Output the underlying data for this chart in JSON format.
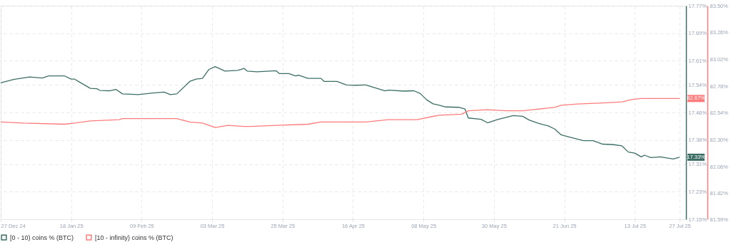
{
  "chart_data": {
    "type": "line",
    "grid": true,
    "legend": "bottom",
    "marker": "none",
    "line_style": "solid",
    "xlim": [
      "2024-12-27",
      "2025-07-29"
    ],
    "xticks": [
      {
        "value": "2024-12-27",
        "label": "27 Dec 24"
      },
      {
        "value": "2025-01-18",
        "label": "18 Jan 25"
      },
      {
        "value": "2025-02-09",
        "label": "09 Feb 25"
      },
      {
        "value": "2025-03-03",
        "label": "03 Mar 25"
      },
      {
        "value": "2025-03-25",
        "label": "25 Mar 25"
      },
      {
        "value": "2025-04-16",
        "label": "16 Apr 25"
      },
      {
        "value": "2025-05-08",
        "label": "08 May 25"
      },
      {
        "value": "2025-05-30",
        "label": "30 May 25"
      },
      {
        "value": "2025-06-21",
        "label": "21 Jun 25"
      },
      {
        "value": "2025-07-13",
        "label": "13 Jul 25"
      },
      {
        "value": "2025-07-27",
        "label": "27 Jul 25"
      }
    ],
    "ylim": [
      17.15,
      17.77
    ],
    "yticks": [
      {
        "value": 17.15,
        "label": "17.15%"
      },
      {
        "value": 17.23,
        "label": "17.23%"
      },
      {
        "value": 17.31,
        "label": "17.31%"
      },
      {
        "value": 17.38,
        "label": "17.38%"
      },
      {
        "value": 17.46,
        "label": "17.46%"
      },
      {
        "value": 17.54,
        "label": "17.54%"
      },
      {
        "value": 17.61,
        "label": "17.61%"
      },
      {
        "value": 17.69,
        "label": "17.69%"
      },
      {
        "value": 17.77,
        "label": "17.77%"
      }
    ],
    "y2lim": [
      81.59,
      83.5
    ],
    "y2ticks": [
      {
        "value": 81.59,
        "label": "81.59%"
      },
      {
        "value": 81.82,
        "label": "81.82%"
      },
      {
        "value": 82.06,
        "label": "82.06%"
      },
      {
        "value": 82.3,
        "label": "82.30%"
      },
      {
        "value": 82.54,
        "label": "82.54%"
      },
      {
        "value": 82.78,
        "label": "82.78%"
      },
      {
        "value": 83.02,
        "label": "83.02%"
      },
      {
        "value": 83.26,
        "label": "83.26%"
      },
      {
        "value": 83.5,
        "label": "83.50%"
      }
    ],
    "series": [
      {
        "name": "[0 - 10) coins % (BTC)",
        "color": "#3d6e66",
        "axis": "y",
        "x": [
          "2024-12-27",
          "2024-12-31",
          "2025-01-05",
          "2025-01-09",
          "2025-01-11",
          "2025-01-16",
          "2025-01-18",
          "2025-01-19",
          "2025-01-21",
          "2025-01-24",
          "2025-01-26",
          "2025-01-27",
          "2025-01-30",
          "2025-02-01",
          "2025-02-03",
          "2025-02-08",
          "2025-02-12",
          "2025-02-16",
          "2025-02-18",
          "2025-02-20",
          "2025-02-24",
          "2025-02-26",
          "2025-02-28",
          "2025-03-02",
          "2025-03-04",
          "2025-03-07",
          "2025-03-11",
          "2025-03-13",
          "2025-03-14",
          "2025-03-17",
          "2025-03-23",
          "2025-03-24",
          "2025-03-27",
          "2025-03-29",
          "2025-03-30",
          "2025-04-02",
          "2025-04-06",
          "2025-04-07",
          "2025-04-11",
          "2025-04-14",
          "2025-04-17",
          "2025-04-20",
          "2025-04-26",
          "2025-04-27",
          "2025-05-02",
          "2025-05-05",
          "2025-05-07",
          "2025-05-09",
          "2025-05-11",
          "2025-05-13",
          "2025-05-15",
          "2025-05-19",
          "2025-05-21",
          "2025-05-22",
          "2025-05-26",
          "2025-05-28",
          "2025-05-31",
          "2025-06-05",
          "2025-06-08",
          "2025-06-10",
          "2025-06-13",
          "2025-06-16",
          "2025-06-18",
          "2025-06-20",
          "2025-06-22",
          "2025-06-27",
          "2025-06-30",
          "2025-07-03",
          "2025-07-06",
          "2025-07-09",
          "2025-07-11",
          "2025-07-13",
          "2025-07-15",
          "2025-07-16",
          "2025-07-18",
          "2025-07-21",
          "2025-07-25",
          "2025-07-27"
        ],
        "values": [
          17.546,
          17.556,
          17.563,
          17.56,
          17.566,
          17.566,
          17.557,
          17.557,
          17.546,
          17.53,
          17.529,
          17.524,
          17.523,
          17.527,
          17.514,
          17.512,
          17.516,
          17.519,
          17.512,
          17.514,
          17.55,
          17.557,
          17.559,
          17.585,
          17.593,
          17.58,
          17.582,
          17.588,
          17.58,
          17.578,
          17.581,
          17.573,
          17.573,
          17.566,
          17.568,
          17.559,
          17.559,
          17.55,
          17.55,
          17.54,
          17.539,
          17.54,
          17.523,
          17.525,
          17.522,
          17.523,
          17.515,
          17.497,
          17.485,
          17.481,
          17.476,
          17.475,
          17.47,
          17.444,
          17.44,
          17.43,
          17.439,
          17.451,
          17.449,
          17.438,
          17.428,
          17.421,
          17.412,
          17.395,
          17.39,
          17.378,
          17.378,
          17.368,
          17.367,
          17.363,
          17.345,
          17.342,
          17.331,
          17.336,
          17.329,
          17.331,
          17.325,
          17.33
        ],
        "value_labels": [
          null,
          null,
          null,
          null,
          null,
          null,
          null,
          null,
          null,
          null,
          null,
          null,
          null,
          null,
          null,
          null,
          null,
          null,
          null,
          null,
          null,
          null,
          null,
          null,
          null,
          null,
          null,
          null,
          null,
          null,
          null,
          null,
          null,
          null,
          null,
          null,
          null,
          null,
          null,
          null,
          null,
          null,
          null,
          null,
          null,
          null,
          null,
          null,
          null,
          null,
          null,
          null,
          null,
          null,
          null,
          null,
          null,
          null,
          null,
          null,
          null,
          null,
          null,
          null,
          null,
          null,
          null,
          null,
          null,
          null,
          null,
          null,
          null,
          null,
          null,
          null,
          null,
          "17.33%"
        ]
      },
      {
        "name": "[10 - infinity) coins % (BTC)",
        "color": "#ff7b7b",
        "axis": "y2",
        "x": [
          "2024-12-27",
          "2025-01-03",
          "2025-01-16",
          "2025-01-19",
          "2025-01-24",
          "2025-02-02",
          "2025-02-03",
          "2025-02-17",
          "2025-02-20",
          "2025-02-24",
          "2025-02-28",
          "2025-03-04",
          "2025-03-08",
          "2025-03-13",
          "2025-03-15",
          "2025-03-23",
          "2025-04-02",
          "2025-04-06",
          "2025-04-17",
          "2025-04-20",
          "2025-04-27",
          "2025-05-06",
          "2025-05-11",
          "2025-05-13",
          "2025-05-20",
          "2025-05-22",
          "2025-05-28",
          "2025-06-03",
          "2025-06-08",
          "2025-06-11",
          "2025-06-18",
          "2025-06-20",
          "2025-06-25",
          "2025-07-03",
          "2025-07-09",
          "2025-07-12",
          "2025-07-15",
          "2025-07-17",
          "2025-07-27"
        ],
        "values": [
          82.46,
          82.45,
          82.44,
          82.45,
          82.47,
          82.48,
          82.49,
          82.49,
          82.49,
          82.46,
          82.45,
          82.41,
          82.43,
          82.42,
          82.42,
          82.43,
          82.44,
          82.46,
          82.46,
          82.46,
          82.48,
          82.48,
          82.51,
          82.52,
          82.53,
          82.56,
          82.57,
          82.56,
          82.56,
          82.57,
          82.59,
          82.61,
          82.62,
          82.63,
          82.64,
          82.66,
          82.67,
          82.67,
          82.67
        ],
        "value_labels": [
          null,
          null,
          null,
          null,
          null,
          null,
          null,
          null,
          null,
          null,
          null,
          null,
          null,
          null,
          null,
          null,
          null,
          null,
          null,
          null,
          null,
          null,
          null,
          null,
          null,
          null,
          null,
          null,
          null,
          null,
          null,
          null,
          null,
          null,
          null,
          null,
          null,
          null,
          "82.67%"
        ]
      }
    ]
  }
}
